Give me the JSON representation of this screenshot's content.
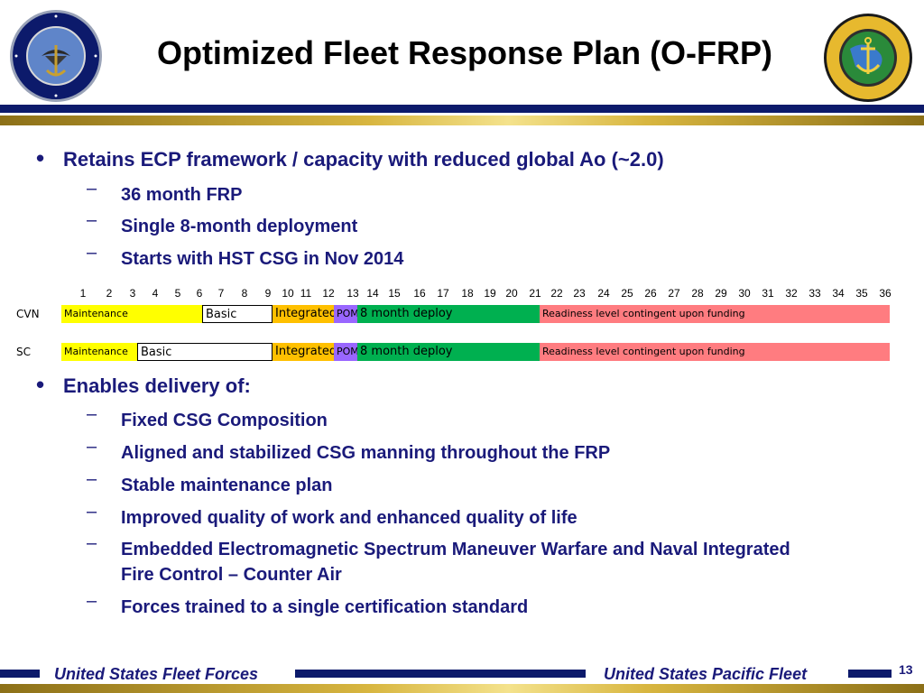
{
  "title": "Optimized Fleet Response Plan (O-FRP)",
  "colors": {
    "navy": "#0c1a6b",
    "gold": "#d8b640",
    "maintenance": "#ffff00",
    "integrated": "#ffc000",
    "pom": "#9966ff",
    "deploy": "#00b050",
    "readiness": "#ff7c80"
  },
  "bullets": [
    {
      "text": "Retains ECP framework / capacity with reduced global Ao (~2.0)",
      "subs": [
        "36 month FRP",
        "Single 8-month deployment",
        "Starts with HST CSG in Nov 2014"
      ]
    },
    {
      "text": "Enables delivery of:",
      "subs": [
        "Fixed CSG Composition",
        "Aligned and stabilized CSG manning throughout the FRP",
        "Stable maintenance plan",
        "Improved quality of work and enhanced quality of life",
        "Embedded Electromagnetic Spectrum Maneuver Warfare and Naval Integrated Fire Control – Counter Air",
        "Forces trained to a single certification standard"
      ]
    }
  ],
  "timeline": {
    "months": [
      "1",
      "2",
      "3",
      "4",
      "5",
      "6",
      "7",
      "8",
      "9",
      "10",
      "11",
      "12",
      "13",
      "14",
      "15",
      "16",
      "17",
      "18",
      "19",
      "20",
      "21",
      "22",
      "23",
      "24",
      "25",
      "26",
      "27",
      "28",
      "29",
      "30",
      "31",
      "32",
      "33",
      "34",
      "35",
      "36"
    ],
    "rows": [
      {
        "label": "CVN",
        "segments": [
          {
            "label": "Maintenance",
            "start": 1,
            "end": 6,
            "color": "#ffff00"
          },
          {
            "label": "Basic",
            "start": 7,
            "end": 9,
            "color": "#ffffff",
            "outlined": true
          },
          {
            "label": "Integrated",
            "start": 10,
            "end": 12,
            "color": "#ffc000"
          },
          {
            "label": "POM",
            "start": 13,
            "end": 13,
            "color": "#9966ff"
          },
          {
            "label": "8 month deploy",
            "start": 14,
            "end": 21,
            "color": "#00b050"
          },
          {
            "label": "Readiness level contingent upon funding",
            "start": 22,
            "end": 36,
            "color": "#ff7c80"
          }
        ]
      },
      {
        "label": "SC",
        "segments": [
          {
            "label": "Maintenance",
            "start": 1,
            "end": 3,
            "color": "#ffff00"
          },
          {
            "label": "Basic",
            "start": 4,
            "end": 9,
            "color": "#ffffff",
            "outlined": true
          },
          {
            "label": "Integrated",
            "start": 10,
            "end": 12,
            "color": "#ffc000"
          },
          {
            "label": "POM",
            "start": 13,
            "end": 13,
            "color": "#9966ff"
          },
          {
            "label": "8 month deploy",
            "start": 14,
            "end": 21,
            "color": "#00b050"
          },
          {
            "label": "Readiness level contingent upon funding",
            "start": 22,
            "end": 36,
            "color": "#ff7c80"
          }
        ]
      }
    ]
  },
  "logos": {
    "left": {
      "text": "UNITED STATES FLEET FORCES COMMAND",
      "icon": "eagle-anchor-seal-icon"
    },
    "right": {
      "text": "COMMANDER UNITED STATES PACIFIC FLEET",
      "icon": "anchor-globe-seal-icon"
    }
  },
  "footer": {
    "left": "United States Fleet Forces",
    "right": "United States Pacific Fleet",
    "page_number": "13"
  }
}
